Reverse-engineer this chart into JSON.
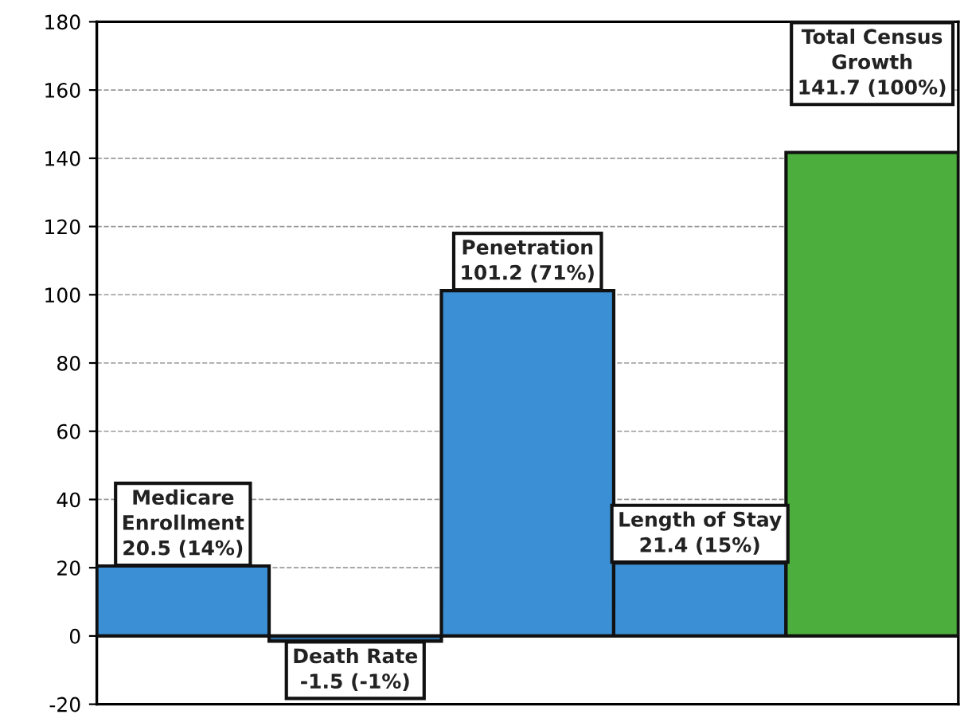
{
  "chart_data": {
    "type": "bar",
    "categories": [
      null,
      null,
      null,
      null,
      null
    ],
    "values": [
      20.5,
      -1.5,
      101.2,
      21.4,
      141.7
    ],
    "colors": [
      "#3b8fd4",
      "#2f6fa8",
      "#3b8fd4",
      "#3b8fd4",
      "#4cae3c"
    ],
    "value_labels": [
      "Medicare\nEnrollment\n20.5 (14%)",
      "Death Rate\n-1.5 (-1%)",
      "Penetration\n101.2 (71%)",
      "Length of Stay\n21.4 (15%)",
      "Total Census\nGrowth\n141.7 (100%)"
    ],
    "ylim": [
      -20,
      180
    ],
    "yticks": [
      -20,
      0,
      20,
      40,
      60,
      80,
      100,
      120,
      140,
      160,
      180
    ],
    "grid": "y"
  }
}
